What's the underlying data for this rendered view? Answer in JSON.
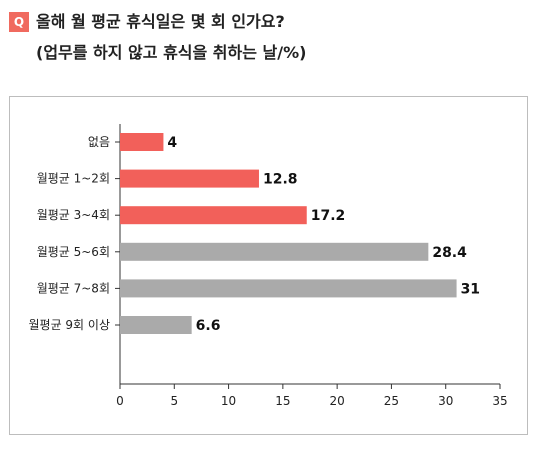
{
  "header": {
    "badge": "Q",
    "line1": "올해 월 평균 휴식일은 몇 회 인가요?",
    "line2": "(업무를 하지 않고 휴식을 취하는 날/%)"
  },
  "chart_data": {
    "type": "bar",
    "orientation": "horizontal",
    "categories": [
      "없음",
      "월평균 1~2회",
      "월평균 3~4회",
      "월평균 5~6회",
      "월평균 7~8회",
      "월평균 9회 이상"
    ],
    "values": [
      4,
      12.8,
      17.2,
      28.4,
      31,
      6.6
    ],
    "value_labels": [
      "4",
      "12.8",
      "17.2",
      "28.4",
      "31",
      "6.6"
    ],
    "bar_colors": [
      "#f2605a",
      "#f2605a",
      "#f2605a",
      "#aaaaaa",
      "#aaaaaa",
      "#aaaaaa"
    ],
    "xlim": [
      0,
      35
    ],
    "xticks": [
      0,
      5,
      10,
      15,
      20,
      25,
      30,
      35
    ],
    "grid": false,
    "legend": false
  }
}
